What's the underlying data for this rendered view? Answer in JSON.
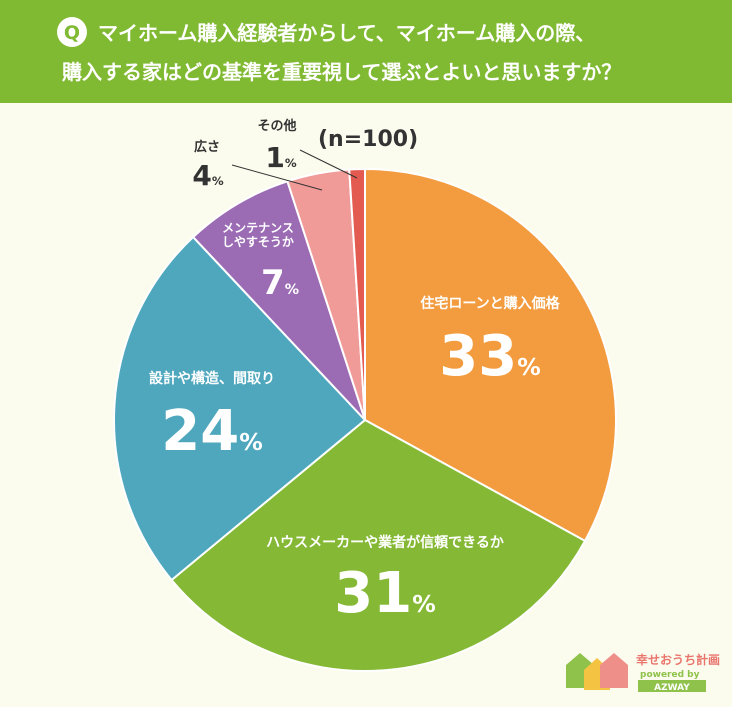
{
  "header": {
    "badge": "Q",
    "title_lines": [
      "マイホーム購入経験者からして、マイホーム購入の際、",
      "購入する家はどの基準を重要視して選ぶとよいと思いますか？"
    ]
  },
  "chart_data": {
    "type": "pie",
    "annotation": "(n=100)",
    "categories": [
      "住宅ローンと購入価格",
      "ハウスメーカーや業者が信頼できるか",
      "設計や構造、間取り",
      "メンテナンス\nしやすそうか",
      "広さ",
      "その他"
    ],
    "values": [
      33,
      31,
      24,
      7,
      4,
      1
    ],
    "value_labels": [
      "33%",
      "31%",
      "24%",
      "7%",
      "4%",
      "1%"
    ],
    "colors": [
      "#f39c3f",
      "#85b935",
      "#4fa7be",
      "#9b6bb4",
      "#f09b98",
      "#e35a50"
    ]
  },
  "brand": {
    "name": "幸せおうち計画",
    "powered": "powered by",
    "company": "AZWAY"
  }
}
